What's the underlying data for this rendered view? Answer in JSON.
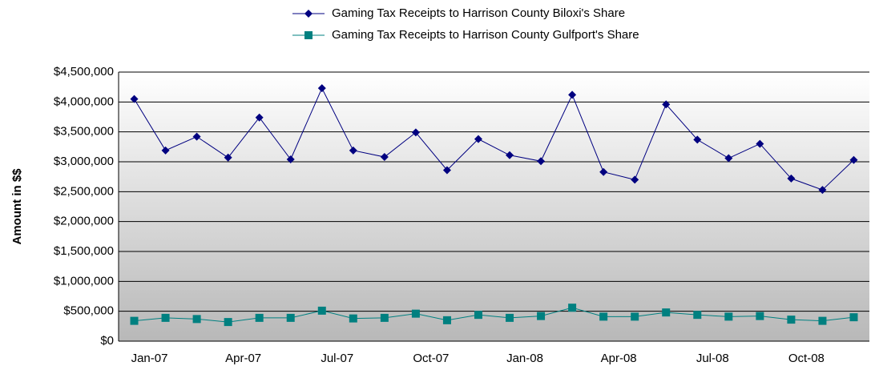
{
  "chart_data": {
    "type": "line",
    "y_label": "Amount in $$",
    "categories": [
      "Jan-07",
      null,
      null,
      "Apr-07",
      null,
      null,
      "Jul-07",
      null,
      null,
      "Oct-07",
      null,
      null,
      "Jan-08",
      null,
      null,
      "Apr-08",
      null,
      null,
      "Jul-08",
      null,
      null,
      "Oct-08",
      null,
      null
    ],
    "series": [
      {
        "name": "Gaming Tax Receipts to Harrison County Biloxi's Share",
        "color": "#000080",
        "marker": "diamond",
        "values": [
          4050000,
          3190000,
          3420000,
          3070000,
          3740000,
          3040000,
          4230000,
          3190000,
          3080000,
          3490000,
          2860000,
          3380000,
          3110000,
          3010000,
          4120000,
          2830000,
          2700000,
          3960000,
          3370000,
          3060000,
          3300000,
          2720000,
          2530000,
          3030000
        ]
      },
      {
        "name": "Gaming Tax Receipts to Harrison County Gulfport's Share",
        "color": "#008080",
        "marker": "square",
        "values": [
          340000,
          390000,
          370000,
          320000,
          390000,
          390000,
          510000,
          380000,
          390000,
          460000,
          350000,
          440000,
          390000,
          420000,
          560000,
          410000,
          410000,
          480000,
          440000,
          410000,
          420000,
          360000,
          340000,
          400000
        ]
      }
    ],
    "ylim": [
      0,
      4500000
    ],
    "yticks": [
      {
        "value": 0,
        "label": "$0"
      },
      {
        "value": 500000,
        "label": "$500,000"
      },
      {
        "value": 1000000,
        "label": "$1,000,000"
      },
      {
        "value": 1500000,
        "label": "$1,500,000"
      },
      {
        "value": 2000000,
        "label": "$2,000,000"
      },
      {
        "value": 2500000,
        "label": "$2,500,000"
      },
      {
        "value": 3000000,
        "label": "$3,000,000"
      },
      {
        "value": 3500000,
        "label": "$3,500,000"
      },
      {
        "value": 4000000,
        "label": "$4,000,000"
      },
      {
        "value": 4500000,
        "label": "$4,500,000"
      }
    ],
    "grid": true,
    "legend": "top"
  }
}
